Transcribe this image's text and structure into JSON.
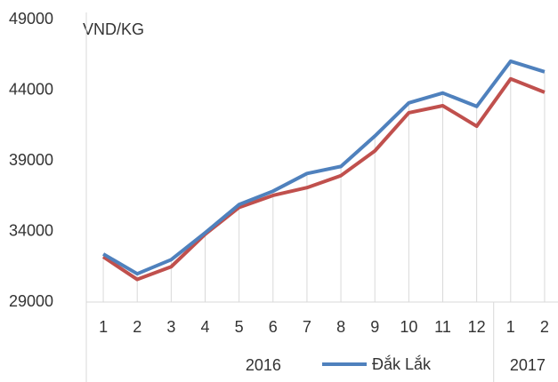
{
  "chart_data": {
    "type": "line",
    "y_label": "VND/KG",
    "categories": [
      "1",
      "2",
      "3",
      "4",
      "5",
      "6",
      "7",
      "8",
      "9",
      "10",
      "11",
      "12",
      "1",
      "2"
    ],
    "groups": [
      {
        "name": "2016",
        "count": 12
      },
      {
        "name": "2017",
        "count": 2
      }
    ],
    "series": [
      {
        "name": "Đắk Lắk",
        "color": "#4f81bd",
        "values": [
          32400,
          31000,
          32000,
          33900,
          35900,
          36850,
          38100,
          38600,
          40750,
          43100,
          43800,
          42850,
          46050,
          45300
        ]
      },
      {
        "color": "#c0504d",
        "values": [
          32200,
          30600,
          31500,
          33800,
          35700,
          36550,
          37100,
          37950,
          39700,
          42400,
          42900,
          41450,
          44800,
          43850
        ]
      }
    ],
    "ylim": [
      29000,
      49000
    ],
    "yticks": [
      29000,
      34000,
      39000,
      44000,
      49000
    ]
  }
}
